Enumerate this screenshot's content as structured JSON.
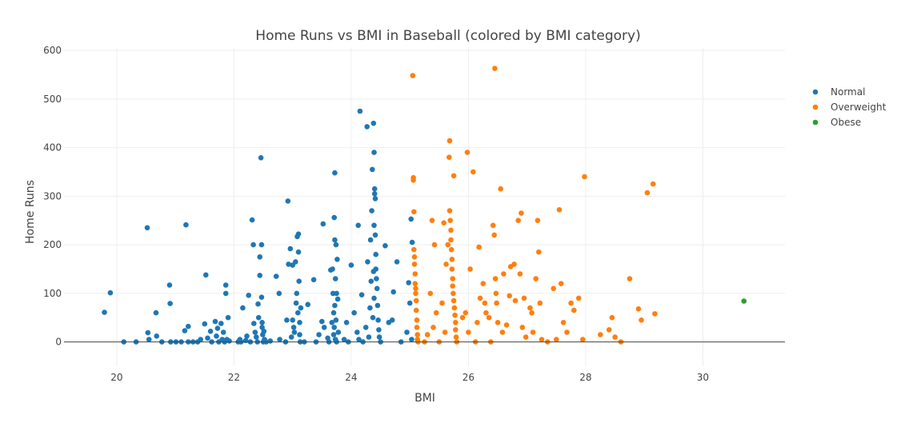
{
  "chart_data": {
    "type": "scatter",
    "title": "Home Runs vs BMI in Baseball (colored by BMI category)",
    "xlabel": "BMI",
    "ylabel": "Home Runs",
    "xlim": [
      19.1,
      31.4
    ],
    "ylim": [
      -50,
      605
    ],
    "x_ticks": [
      20,
      22,
      24,
      26,
      28,
      30
    ],
    "y_ticks": [
      0,
      100,
      200,
      300,
      400,
      500,
      600
    ],
    "grid": true,
    "legend_position": "top-right",
    "series": [
      {
        "name": "Normal",
        "color": "#1f77b4",
        "points": [
          [
            19.79,
            61
          ],
          [
            19.89,
            101
          ],
          [
            20.12,
            0
          ],
          [
            20.33,
            0
          ],
          [
            20.52,
            235
          ],
          [
            20.53,
            19
          ],
          [
            20.55,
            5
          ],
          [
            20.67,
            60
          ],
          [
            20.68,
            12
          ],
          [
            20.77,
            0
          ],
          [
            20.9,
            117
          ],
          [
            20.91,
            79
          ],
          [
            20.92,
            0
          ],
          [
            21.01,
            0
          ],
          [
            21.1,
            0
          ],
          [
            21.18,
            241
          ],
          [
            21.16,
            23
          ],
          [
            21.22,
            32
          ],
          [
            21.22,
            0
          ],
          [
            21.3,
            0
          ],
          [
            21.38,
            0
          ],
          [
            21.43,
            5
          ],
          [
            21.5,
            37
          ],
          [
            21.52,
            138
          ],
          [
            21.55,
            8
          ],
          [
            21.6,
            22
          ],
          [
            21.62,
            0
          ],
          [
            21.68,
            42
          ],
          [
            21.7,
            12
          ],
          [
            21.72,
            28
          ],
          [
            21.74,
            0
          ],
          [
            21.78,
            38
          ],
          [
            21.8,
            5
          ],
          [
            21.82,
            20
          ],
          [
            21.84,
            0
          ],
          [
            21.86,
            117
          ],
          [
            21.86,
            100
          ],
          [
            21.88,
            5
          ],
          [
            21.9,
            50
          ],
          [
            21.92,
            2
          ],
          [
            22.07,
            0
          ],
          [
            22.1,
            5
          ],
          [
            22.12,
            0
          ],
          [
            22.15,
            70
          ],
          [
            22.2,
            3
          ],
          [
            22.22,
            12
          ],
          [
            22.25,
            96
          ],
          [
            22.28,
            0
          ],
          [
            22.31,
            251
          ],
          [
            22.33,
            200
          ],
          [
            22.34,
            38
          ],
          [
            22.36,
            20
          ],
          [
            22.38,
            10
          ],
          [
            22.4,
            0
          ],
          [
            22.41,
            78
          ],
          [
            22.42,
            50
          ],
          [
            22.44,
            175
          ],
          [
            22.44,
            137
          ],
          [
            22.46,
            379
          ],
          [
            22.47,
            200
          ],
          [
            22.47,
            92
          ],
          [
            22.48,
            40
          ],
          [
            22.48,
            30
          ],
          [
            22.49,
            15
          ],
          [
            22.5,
            0
          ],
          [
            22.51,
            22
          ],
          [
            22.52,
            5
          ],
          [
            22.55,
            0
          ],
          [
            22.62,
            2
          ],
          [
            22.72,
            135
          ],
          [
            22.77,
            100
          ],
          [
            22.78,
            5
          ],
          [
            22.88,
            0
          ],
          [
            22.9,
            45
          ],
          [
            22.92,
            290
          ],
          [
            22.93,
            160
          ],
          [
            22.96,
            192
          ],
          [
            22.98,
            10
          ],
          [
            23.0,
            158
          ],
          [
            23.0,
            45
          ],
          [
            23.02,
            30
          ],
          [
            23.03,
            20
          ],
          [
            23.05,
            165
          ],
          [
            23.06,
            80
          ],
          [
            23.07,
            100
          ],
          [
            23.08,
            217
          ],
          [
            23.09,
            60
          ],
          [
            23.1,
            222
          ],
          [
            23.1,
            185
          ],
          [
            23.11,
            125
          ],
          [
            23.12,
            40
          ],
          [
            23.12,
            15
          ],
          [
            23.13,
            0
          ],
          [
            23.14,
            70
          ],
          [
            23.2,
            0
          ],
          [
            23.26,
            77
          ],
          [
            23.36,
            128
          ],
          [
            23.4,
            0
          ],
          [
            23.45,
            15
          ],
          [
            23.5,
            42
          ],
          [
            23.52,
            243
          ],
          [
            23.54,
            30
          ],
          [
            23.6,
            8
          ],
          [
            23.62,
            0
          ],
          [
            23.65,
            148
          ],
          [
            23.67,
            40
          ],
          [
            23.68,
            150
          ],
          [
            23.69,
            100
          ],
          [
            23.7,
            60
          ],
          [
            23.7,
            15
          ],
          [
            23.71,
            256
          ],
          [
            23.71,
            30
          ],
          [
            23.72,
            348
          ],
          [
            23.72,
            210
          ],
          [
            23.72,
            75
          ],
          [
            23.73,
            5
          ],
          [
            23.73,
            130
          ],
          [
            23.74,
            200
          ],
          [
            23.74,
            45
          ],
          [
            23.75,
            100
          ],
          [
            23.75,
            0
          ],
          [
            23.76,
            170
          ],
          [
            23.77,
            88
          ],
          [
            23.78,
            20
          ],
          [
            23.88,
            5
          ],
          [
            23.92,
            40
          ],
          [
            23.95,
            0
          ],
          [
            24.0,
            158
          ],
          [
            24.05,
            60
          ],
          [
            24.1,
            20
          ],
          [
            24.12,
            240
          ],
          [
            24.13,
            5
          ],
          [
            24.15,
            475
          ],
          [
            24.18,
            97
          ],
          [
            24.2,
            0
          ],
          [
            24.25,
            30
          ],
          [
            24.27,
            443
          ],
          [
            24.28,
            165
          ],
          [
            24.3,
            10
          ],
          [
            24.32,
            70
          ],
          [
            24.33,
            210
          ],
          [
            24.34,
            125
          ],
          [
            24.35,
            270
          ],
          [
            24.36,
            355
          ],
          [
            24.37,
            50
          ],
          [
            24.38,
            450
          ],
          [
            24.38,
            145
          ],
          [
            24.39,
            390
          ],
          [
            24.39,
            240
          ],
          [
            24.39,
            90
          ],
          [
            24.4,
            315
          ],
          [
            24.4,
            305
          ],
          [
            24.41,
            295
          ],
          [
            24.41,
            220
          ],
          [
            24.42,
            180
          ],
          [
            24.42,
            150
          ],
          [
            24.43,
            130
          ],
          [
            24.44,
            110
          ],
          [
            24.45,
            75
          ],
          [
            24.46,
            45
          ],
          [
            24.47,
            25
          ],
          [
            24.48,
            10
          ],
          [
            24.5,
            0
          ],
          [
            24.58,
            198
          ],
          [
            24.64,
            40
          ],
          [
            24.7,
            45
          ],
          [
            24.72,
            103
          ],
          [
            24.78,
            165
          ],
          [
            24.85,
            0
          ],
          [
            24.95,
            20
          ],
          [
            24.98,
            122
          ],
          [
            25.0,
            80
          ],
          [
            25.02,
            253
          ],
          [
            25.03,
            5
          ],
          [
            25.04,
            205
          ]
        ]
      },
      {
        "name": "Overweight",
        "color": "#ff7f0e",
        "points": [
          [
            25.05,
            548
          ],
          [
            25.06,
            338
          ],
          [
            25.06,
            333
          ],
          [
            25.07,
            268
          ],
          [
            25.07,
            190
          ],
          [
            25.08,
            175
          ],
          [
            25.08,
            160
          ],
          [
            25.09,
            140
          ],
          [
            25.09,
            120
          ],
          [
            25.1,
            110
          ],
          [
            25.1,
            100
          ],
          [
            25.11,
            85
          ],
          [
            25.11,
            65
          ],
          [
            25.12,
            45
          ],
          [
            25.12,
            30
          ],
          [
            25.13,
            15
          ],
          [
            25.13,
            5
          ],
          [
            25.14,
            0
          ],
          [
            25.25,
            0
          ],
          [
            25.3,
            15
          ],
          [
            25.35,
            100
          ],
          [
            25.38,
            250
          ],
          [
            25.4,
            30
          ],
          [
            25.42,
            200
          ],
          [
            25.45,
            60
          ],
          [
            25.5,
            0
          ],
          [
            25.55,
            80
          ],
          [
            25.58,
            245
          ],
          [
            25.6,
            20
          ],
          [
            25.62,
            160
          ],
          [
            25.65,
            200
          ],
          [
            25.67,
            380
          ],
          [
            25.68,
            414
          ],
          [
            25.68,
            270
          ],
          [
            25.69,
            250
          ],
          [
            25.7,
            230
          ],
          [
            25.7,
            210
          ],
          [
            25.71,
            190
          ],
          [
            25.72,
            170
          ],
          [
            25.72,
            150
          ],
          [
            25.73,
            130
          ],
          [
            25.73,
            115
          ],
          [
            25.74,
            100
          ],
          [
            25.75,
            342
          ],
          [
            25.75,
            85
          ],
          [
            25.76,
            70
          ],
          [
            25.77,
            55
          ],
          [
            25.78,
            40
          ],
          [
            25.78,
            25
          ],
          [
            25.79,
            10
          ],
          [
            25.8,
            0
          ],
          [
            25.9,
            50
          ],
          [
            25.95,
            60
          ],
          [
            25.98,
            390
          ],
          [
            26.0,
            20
          ],
          [
            26.03,
            150
          ],
          [
            26.08,
            350
          ],
          [
            26.12,
            0
          ],
          [
            26.15,
            40
          ],
          [
            26.18,
            195
          ],
          [
            26.2,
            90
          ],
          [
            26.25,
            120
          ],
          [
            26.28,
            80
          ],
          [
            26.3,
            60
          ],
          [
            26.35,
            50
          ],
          [
            26.38,
            0
          ],
          [
            26.42,
            240
          ],
          [
            26.44,
            220
          ],
          [
            26.45,
            563
          ],
          [
            26.46,
            130
          ],
          [
            26.47,
            100
          ],
          [
            26.48,
            80
          ],
          [
            26.5,
            40
          ],
          [
            26.55,
            315
          ],
          [
            26.58,
            20
          ],
          [
            26.6,
            140
          ],
          [
            26.65,
            35
          ],
          [
            26.7,
            95
          ],
          [
            26.72,
            155
          ],
          [
            26.78,
            160
          ],
          [
            26.8,
            85
          ],
          [
            26.85,
            250
          ],
          [
            26.88,
            140
          ],
          [
            26.9,
            265
          ],
          [
            26.92,
            30
          ],
          [
            26.95,
            90
          ],
          [
            26.98,
            10
          ],
          [
            27.05,
            70
          ],
          [
            27.08,
            60
          ],
          [
            27.1,
            20
          ],
          [
            27.15,
            130
          ],
          [
            27.18,
            250
          ],
          [
            27.2,
            185
          ],
          [
            27.22,
            80
          ],
          [
            27.25,
            5
          ],
          [
            27.35,
            0
          ],
          [
            27.45,
            110
          ],
          [
            27.5,
            5
          ],
          [
            27.55,
            272
          ],
          [
            27.58,
            120
          ],
          [
            27.62,
            40
          ],
          [
            27.68,
            20
          ],
          [
            27.75,
            80
          ],
          [
            27.8,
            65
          ],
          [
            27.88,
            90
          ],
          [
            27.95,
            5
          ],
          [
            27.98,
            340
          ],
          [
            28.25,
            15
          ],
          [
            28.4,
            25
          ],
          [
            28.45,
            50
          ],
          [
            28.5,
            10
          ],
          [
            28.6,
            0
          ],
          [
            28.75,
            130
          ],
          [
            28.9,
            68
          ],
          [
            28.95,
            45
          ],
          [
            29.05,
            307
          ],
          [
            29.15,
            325
          ],
          [
            29.18,
            58
          ]
        ]
      },
      {
        "name": "Obese",
        "color": "#2ca02c",
        "points": [
          [
            30.7,
            84
          ]
        ]
      }
    ]
  }
}
